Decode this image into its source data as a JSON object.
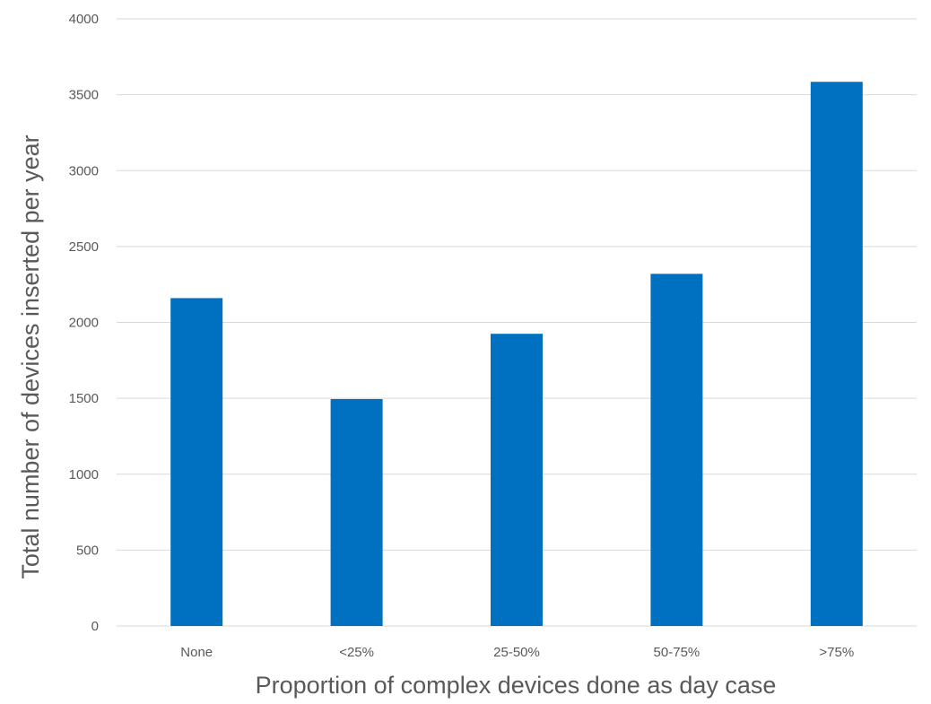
{
  "chart_data": {
    "type": "bar",
    "title": "",
    "xlabel": "Proportion of complex devices done as day case",
    "ylabel": "Total number of devices inserted per year",
    "categories": [
      "None",
      "<25%",
      "25-50%",
      "50-75%",
      ">75%"
    ],
    "series": [
      {
        "values": [
          2160,
          1495,
          1925,
          2320,
          3585
        ]
      }
    ],
    "ylim": [
      0,
      4000
    ],
    "yticks": [
      "0",
      "500",
      "1000",
      "1500",
      "2000",
      "2500",
      "3000",
      "3500",
      "4000"
    ],
    "grid": "horizontal",
    "legend": "none",
    "colors": {
      "bar": "#0070C0",
      "grid": "#D9D9D9",
      "text": "#595959"
    }
  }
}
